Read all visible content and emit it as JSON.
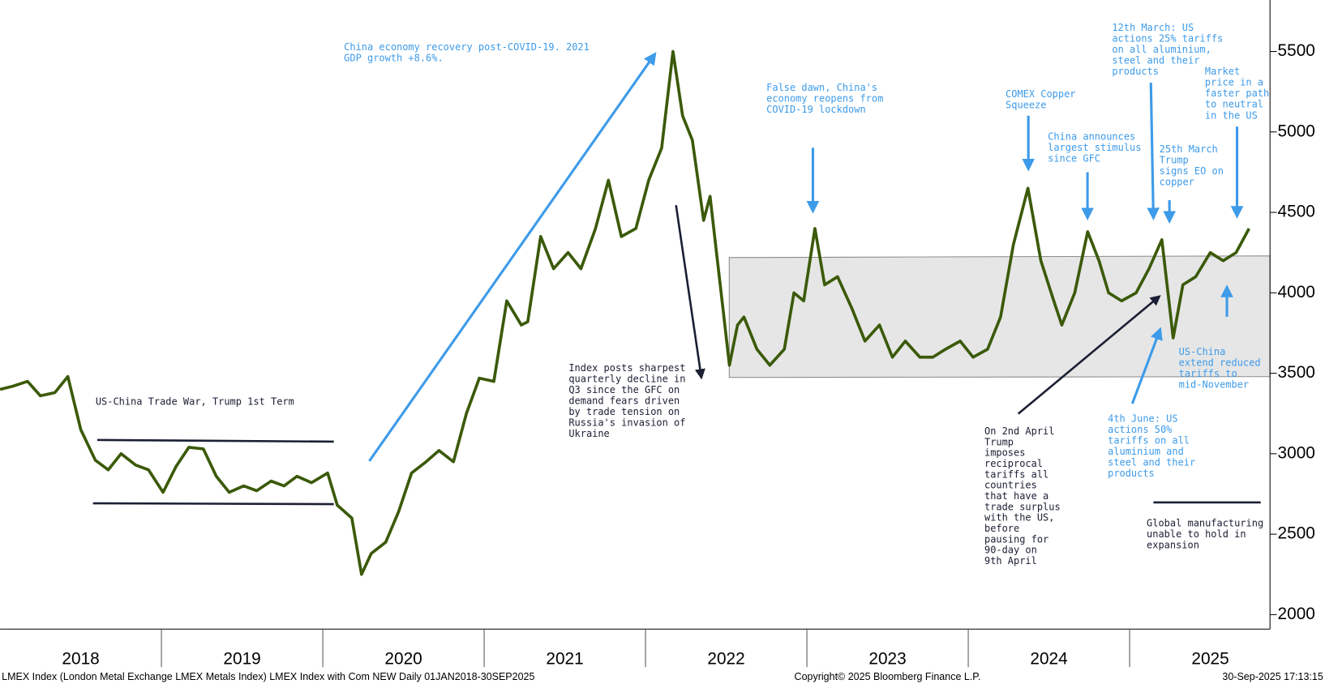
{
  "chart_data": {
    "type": "line",
    "color": "#3b5a0a",
    "x": [
      2018.0,
      2018.08,
      2018.17,
      2018.25,
      2018.34,
      2018.42,
      2018.5,
      2018.59,
      2018.67,
      2018.75,
      2018.84,
      2018.92,
      2019.01,
      2019.09,
      2019.17,
      2019.26,
      2019.34,
      2019.42,
      2019.51,
      2019.59,
      2019.68,
      2019.76,
      2019.84,
      2019.93,
      2020.03,
      2020.09,
      2020.18,
      2020.24,
      2020.3,
      2020.39,
      2020.47,
      2020.55,
      2020.64,
      2020.72,
      2020.81,
      2020.89,
      2020.97,
      2021.06,
      2021.14,
      2021.23,
      2021.27,
      2021.35,
      2021.43,
      2021.52,
      2021.6,
      2021.69,
      2021.77,
      2021.85,
      2021.94,
      2022.02,
      2022.1,
      2022.17,
      2022.23,
      2022.29,
      2022.36,
      2022.4,
      2022.44,
      2022.48,
      2022.52,
      2022.57,
      2022.61,
      2022.69,
      2022.77,
      2022.86,
      2022.92,
      2022.98,
      2023.05,
      2023.11,
      2023.19,
      2023.28,
      2023.36,
      2023.45,
      2023.53,
      2023.61,
      2023.7,
      2023.78,
      2023.86,
      2023.95,
      2024.03,
      2024.12,
      2024.2,
      2024.28,
      2024.37,
      2024.45,
      2024.53,
      2024.58,
      2024.66,
      2024.74,
      2024.81,
      2024.87,
      2024.95,
      2025.04,
      2025.12,
      2025.2,
      2025.27,
      2025.33,
      2025.41,
      2025.5,
      2025.58,
      2025.66,
      2025.74
    ],
    "values": [
      3400,
      3420,
      3450,
      3360,
      3380,
      3480,
      3150,
      2960,
      2900,
      3000,
      2930,
      2900,
      2760,
      2920,
      3040,
      3030,
      2860,
      2760,
      2800,
      2770,
      2830,
      2800,
      2860,
      2820,
      2880,
      2680,
      2600,
      2250,
      2380,
      2450,
      2640,
      2880,
      2950,
      3020,
      2950,
      3250,
      3470,
      3450,
      3950,
      3800,
      3820,
      4350,
      4150,
      4250,
      4150,
      4400,
      4700,
      4350,
      4400,
      4700,
      4900,
      5500,
      5100,
      4950,
      4450,
      4600,
      4250,
      3900,
      3550,
      3800,
      3850,
      3650,
      3550,
      3650,
      4000,
      3950,
      4400,
      4050,
      4100,
      3900,
      3700,
      3800,
      3600,
      3700,
      3600,
      3600,
      3650,
      3700,
      3600,
      3650,
      3850,
      4300,
      4650,
      4200,
      3950,
      3800,
      4000,
      4380,
      4200,
      4000,
      3950,
      4000,
      4150,
      4330,
      3720,
      4050,
      4100,
      4250,
      4200,
      4250,
      4400
    ],
    "xlim": [
      2018,
      2025.87
    ],
    "xticks": [
      {
        "value": 2018.5,
        "label": "2018"
      },
      {
        "value": 2019.5,
        "label": "2019"
      },
      {
        "value": 2020.5,
        "label": "2020"
      },
      {
        "value": 2021.5,
        "label": "2021"
      },
      {
        "value": 2022.5,
        "label": "2022"
      },
      {
        "value": 2023.5,
        "label": "2023"
      },
      {
        "value": 2024.5,
        "label": "2024"
      },
      {
        "value": 2025.5,
        "label": "2025"
      }
    ],
    "ylim": [
      1910,
      5820
    ],
    "yticks": [
      2000,
      2500,
      3000,
      3500,
      4000,
      4500,
      5000,
      5500
    ],
    "annotations": [
      {
        "lines": [
          "China economy recovery post-COVID-19. 2021",
          "GDP growth +8.6%."
        ],
        "color": "#3d9be9"
      },
      {
        "lines": [
          "US-China Trade War, Trump 1st Term"
        ],
        "color": "#1a1f33"
      },
      {
        "lines": [
          "Index posts sharpest",
          "quarterly decline in",
          "Q3 since the GFC on",
          "demand fears driven",
          "by trade tension on",
          "Russia's invasion of",
          "Ukraine"
        ],
        "color": "#1a1f33"
      },
      {
        "lines": [
          "False dawn, China's",
          "economy reopens from",
          "COVID-19 lockdown"
        ],
        "color": "#3d9be9"
      },
      {
        "lines": [
          "COMEX Copper",
          "Squeeze"
        ],
        "color": "#3d9be9"
      },
      {
        "lines": [
          "China announces",
          "largest stimulus",
          "since GFC"
        ],
        "color": "#3d9be9"
      },
      {
        "lines": [
          "12th March: US",
          "actions 25% tariffs",
          "on all aluminium,",
          "steel and their",
          "products"
        ],
        "color": "#3d9be9"
      },
      {
        "lines": [
          "Market",
          "price in a",
          "faster path",
          "to neutral",
          "in the US"
        ],
        "color": "#3d9be9"
      },
      {
        "lines": [
          "25th March",
          "Trump",
          "signs EO on",
          "copper"
        ],
        "color": "#3d9be9"
      },
      {
        "lines": [
          "US-China",
          "extend reduced",
          "tariffs to",
          "mid-November"
        ],
        "color": "#3d9be9"
      },
      {
        "lines": [
          "4th June: US",
          "actions 50%",
          "tariffs on all",
          "aluminium and",
          "steel and their",
          "products"
        ],
        "color": "#3d9be9"
      },
      {
        "lines": [
          "On 2nd April",
          "Trump",
          "imposes",
          "reciprocal",
          "tariffs all",
          "countries",
          "that have a",
          "trade surplus",
          "with the US,",
          "before",
          "pausing for",
          "90-day on",
          "9th April"
        ],
        "color": "#1a1f33"
      },
      {
        "lines": [
          "Global manufacturing",
          "unable to hold in",
          "expansion"
        ],
        "color": "#1a1f33"
      }
    ],
    "footer": {
      "source": "LMEX Index (London Metal Exchange LMEX Metals Index) LMEX Index with Com NEW  Daily 01JAN2018-30SEP2025",
      "copyright": "Copyright© 2025 Bloomberg Finance L.P.",
      "timestamp": "30-Sep-2025 17:13:15"
    }
  }
}
